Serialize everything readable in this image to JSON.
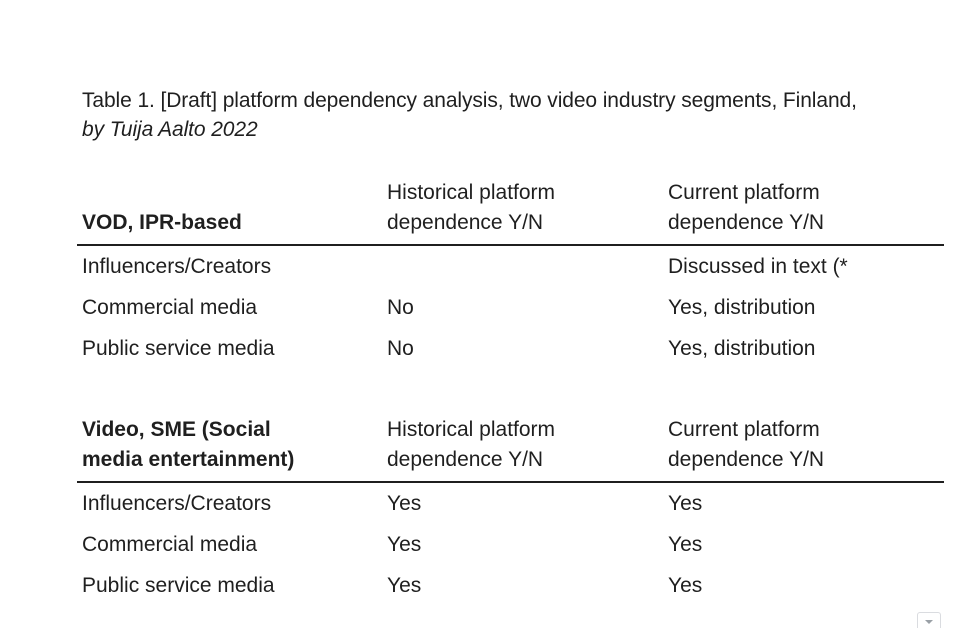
{
  "caption": {
    "title": "Table 1. [Draft] platform dependency analysis, two video industry segments, Finland,",
    "author": "by Tuija Aalto 2022"
  },
  "tables": [
    {
      "header": {
        "segment_lines": [
          "VOD, IPR-based"
        ],
        "historical_lines": [
          "Historical platform",
          "dependence Y/N"
        ],
        "current_lines": [
          "Current platform",
          "dependence Y/N"
        ]
      },
      "rows": [
        {
          "segment": "Influencers/Creators",
          "historical": "",
          "current": "Discussed in text (*"
        },
        {
          "segment": "Commercial media",
          "historical": "No",
          "current": "Yes, distribution"
        },
        {
          "segment": "Public service media",
          "historical": "No",
          "current": "Yes, distribution"
        }
      ]
    },
    {
      "header": {
        "segment_lines": [
          "Video, SME (Social",
          "media entertainment)"
        ],
        "historical_lines": [
          "Historical platform",
          "dependence Y/N"
        ],
        "current_lines": [
          "Current platform",
          "dependence Y/N"
        ]
      },
      "rows": [
        {
          "segment": "Influencers/Creators",
          "historical": "Yes",
          "current": "Yes"
        },
        {
          "segment": "Commercial media",
          "historical": "Yes",
          "current": "Yes"
        },
        {
          "segment": "Public service media",
          "historical": "Yes",
          "current": "Yes"
        }
      ]
    }
  ],
  "widget": {
    "icon": "chevron-down-icon"
  }
}
